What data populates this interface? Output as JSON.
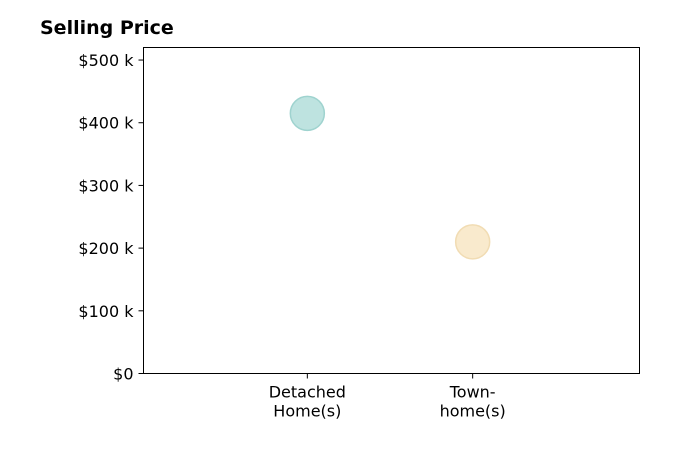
{
  "chart_data": {
    "type": "scatter",
    "title": "Selling Price",
    "xlabel": "",
    "ylabel": "",
    "categories": [
      [
        "Detached",
        "Home(s)"
      ],
      [
        "Town-",
        "home(s)"
      ]
    ],
    "values": [
      415000,
      210000
    ],
    "point_colors": [
      "#b3dedb",
      "#f8e6c4"
    ],
    "point_stroke_colors": [
      "#9fd3cf",
      "#f1dcb3"
    ],
    "ylim": [
      0,
      520000
    ],
    "yticks": [
      0,
      100000,
      200000,
      300000,
      400000,
      500000
    ],
    "ytick_labels": [
      "$0",
      "$100 k",
      "$200 k",
      "$300 k",
      "$400 k",
      "$500 k"
    ],
    "grid": false,
    "legend": "none"
  }
}
